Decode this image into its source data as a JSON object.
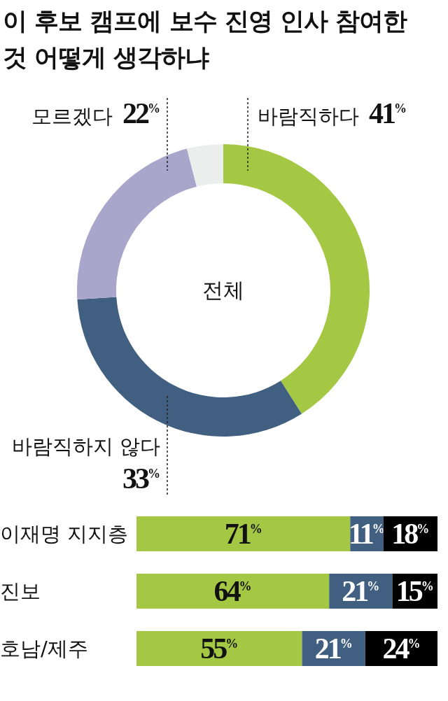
{
  "chart_data": [
    {
      "type": "donut",
      "title": "이 후보 캠프에 보수 진영 인사 참여한 것 어떻게 생각하냐",
      "annotations": [
        "전체"
      ],
      "categories": [
        "바람직하다",
        "바람직하지 않다",
        "모르겠다",
        null
      ],
      "values": [
        41,
        33,
        22,
        4
      ],
      "colors": [
        "#a5c844",
        "#415f80",
        "#aaa5cb",
        "#eceeed"
      ],
      "value_labels": [
        "41$^{%}$",
        "33$^{%}$",
        "22$^{%}$",
        null
      ]
    },
    {
      "type": "bar",
      "orientation": "horizontal",
      "stacked": true,
      "categories": [
        "이재명 지지층",
        "진보",
        "호남/제주"
      ],
      "series": [
        {
          "color": "#a5c844",
          "values": [
            71,
            64,
            55
          ],
          "value_labels": [
            "71$^{%}$",
            "64$^{%}$",
            "55$^{%}$"
          ]
        },
        {
          "color": "#415f80",
          "values": [
            11,
            21,
            21
          ],
          "value_labels": [
            "11$^{%}$",
            "21$^{%}$",
            "21$^{%}$"
          ]
        },
        {
          "color": "#000000",
          "values": [
            18,
            15,
            24
          ],
          "value_labels": [
            "18$^{%}$",
            "15$^{%}$",
            "24$^{%}$"
          ]
        }
      ],
      "xlim": [
        0,
        100
      ],
      "tick_labels": "y"
    }
  ]
}
